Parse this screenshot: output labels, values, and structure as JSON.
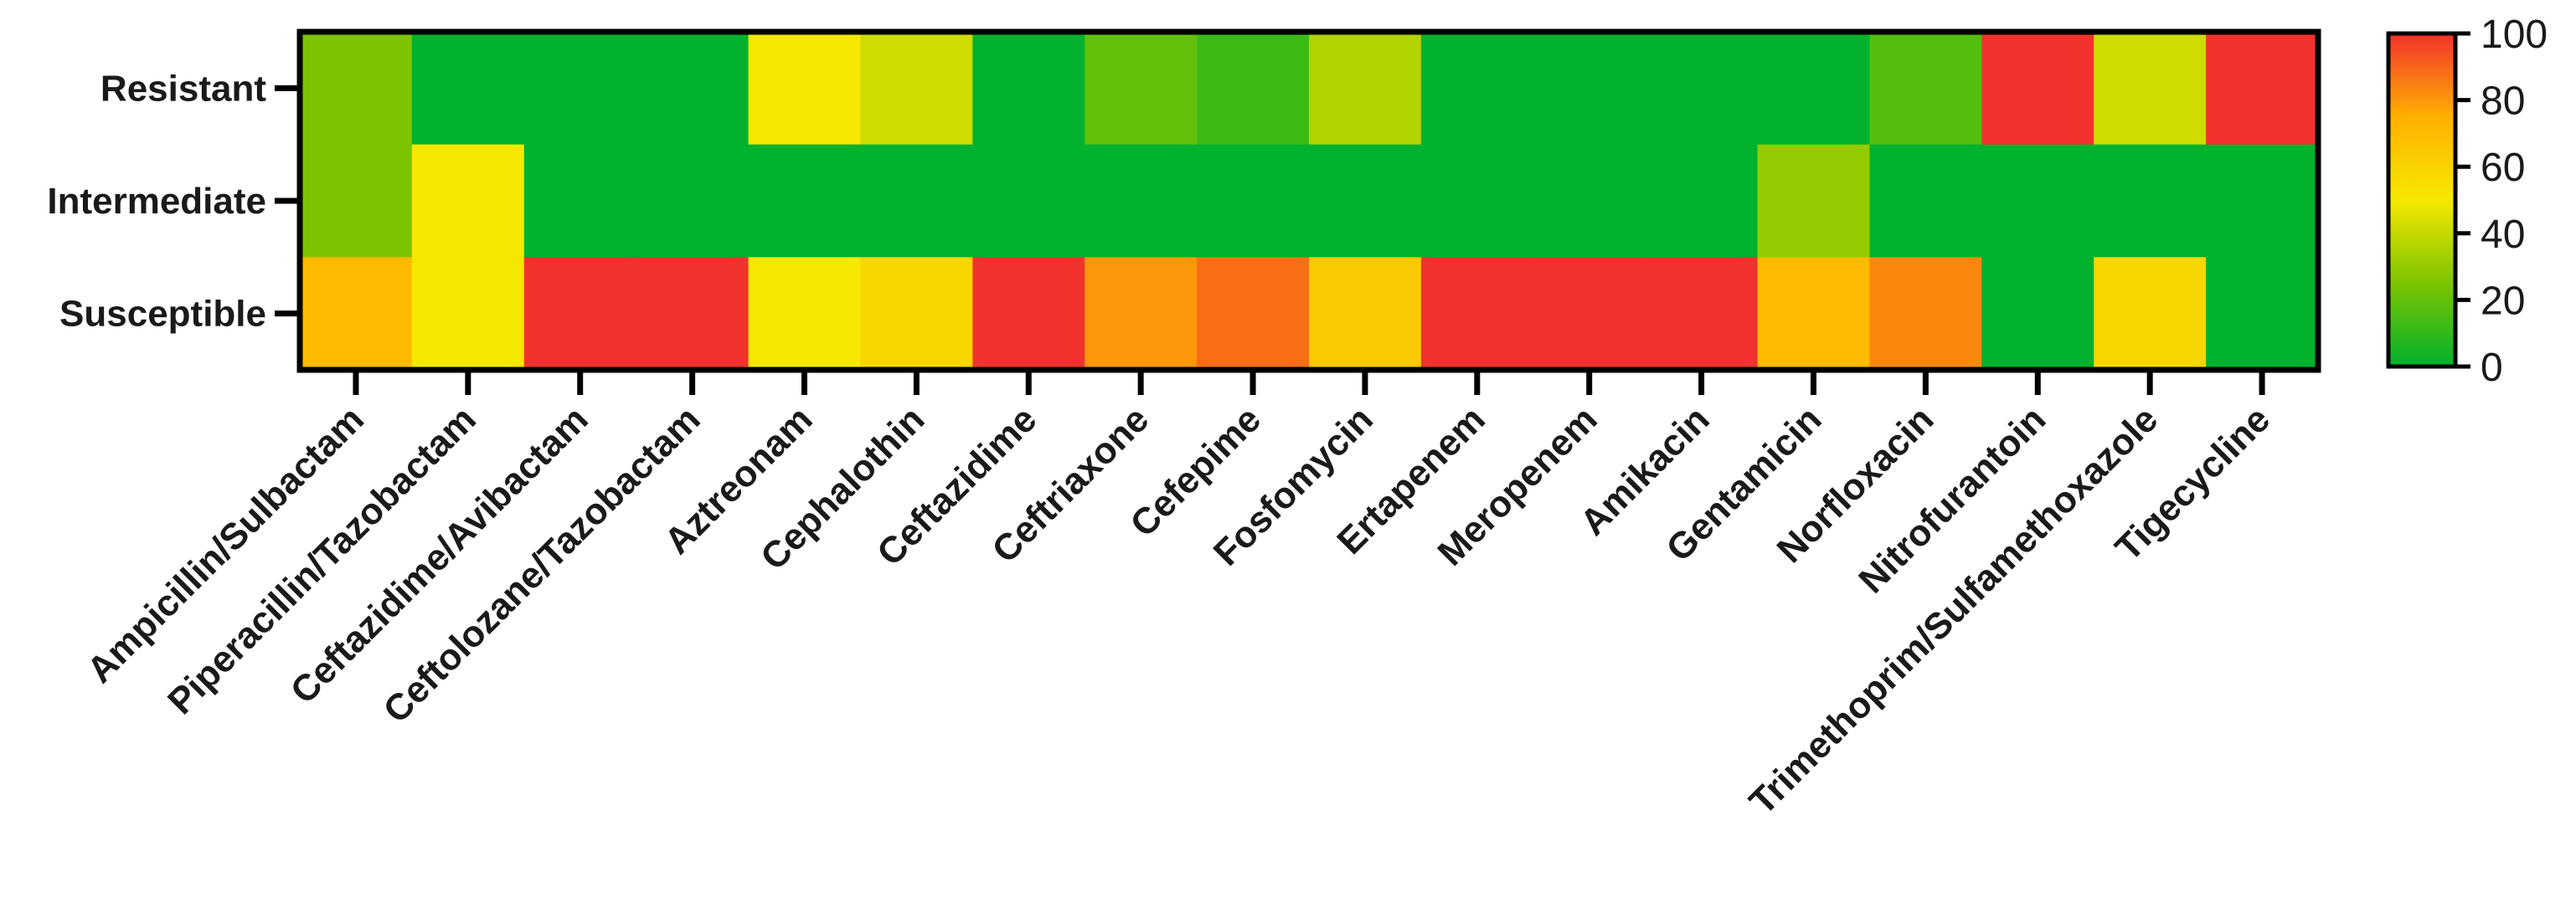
{
  "chart_data": {
    "type": "heatmap",
    "title": "",
    "xlabel": "",
    "ylabel": "",
    "rows": [
      "Resistant",
      "Intermediate",
      "Susceptible"
    ],
    "columns": [
      "Ampicillin/Sulbactam",
      "Piperacillin/Tazobactam",
      "Ceftazidime/Avibactam",
      "Ceftolozane/Tazobactam",
      "Aztreonam",
      "Cephalothin",
      "Ceftazidime",
      "Ceftriaxone",
      "Cefepime",
      "Fosfomycin",
      "Ertapenem",
      "Meropenem",
      "Amikacin",
      "Gentamicin",
      "Norfloxacin",
      "Nitrofurantoin",
      "Trimethoprim/Sulfamethoxazole",
      "Tigecycline"
    ],
    "values": [
      [
        25,
        0,
        0,
        0,
        50,
        42,
        0,
        20,
        12,
        36,
        0,
        0,
        0,
        0,
        17,
        100,
        42,
        100
      ],
      [
        25,
        50,
        0,
        0,
        0,
        0,
        0,
        0,
        0,
        0,
        0,
        0,
        0,
        30,
        0,
        0,
        0,
        0
      ],
      [
        70,
        50,
        100,
        100,
        50,
        58,
        100,
        80,
        88,
        64,
        100,
        100,
        100,
        70,
        83,
        0,
        58,
        0
      ]
    ],
    "colorbar": {
      "range": [
        0,
        100
      ],
      "ticks": [
        "0",
        "20",
        "40",
        "60",
        "80",
        "100"
      ],
      "colors": [
        "#00b22d",
        "#7cc400",
        "#f5e800",
        "#ffb000",
        "#f2322d"
      ]
    }
  }
}
